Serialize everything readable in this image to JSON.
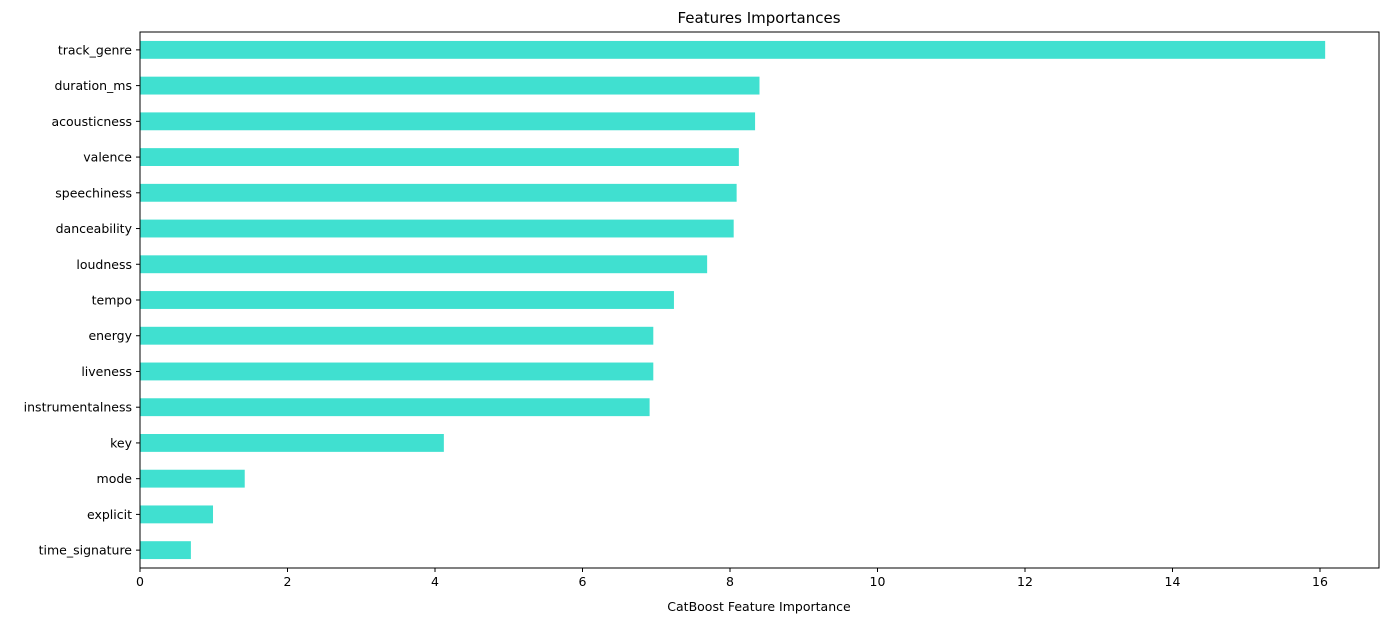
{
  "chart_data": {
    "type": "bar",
    "orientation": "horizontal",
    "title": "Features Importances",
    "xlabel": "CatBoost Feature Importance",
    "ylabel": "",
    "xlim": [
      0,
      16.8
    ],
    "xticks": [
      0,
      2,
      4,
      6,
      8,
      10,
      12,
      14,
      16
    ],
    "grid": false,
    "bar_color": "#40E0D0",
    "categories": [
      "track_genre",
      "duration_ms",
      "acousticness",
      "valence",
      "speechiness",
      "danceability",
      "loudness",
      "tempo",
      "energy",
      "liveness",
      "instrumentalness",
      "key",
      "mode",
      "explicit",
      "time_signature"
    ],
    "values": [
      16.07,
      8.4,
      8.34,
      8.12,
      8.09,
      8.05,
      7.69,
      7.24,
      6.96,
      6.96,
      6.91,
      4.12,
      1.42,
      0.99,
      0.69
    ]
  }
}
